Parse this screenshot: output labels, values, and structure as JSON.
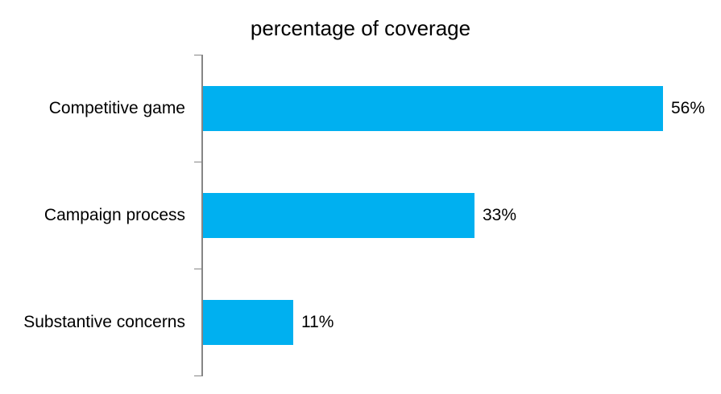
{
  "chart_data": {
    "type": "bar",
    "orientation": "horizontal",
    "title": "percentage of coverage",
    "categories": [
      "Competitive game",
      "Campaign process",
      "Substantive concerns"
    ],
    "values": [
      56,
      33,
      11
    ],
    "value_labels": [
      "56%",
      "33%",
      "11%"
    ],
    "xlabel": "",
    "ylabel": "",
    "xlim": [
      0,
      60
    ],
    "grid": false,
    "legend": false,
    "data_labels_position": "outside-end",
    "bar_color": "#00B0F0",
    "axis_color": "#868686",
    "text_color": "#000000",
    "background": "#FFFFFF"
  }
}
